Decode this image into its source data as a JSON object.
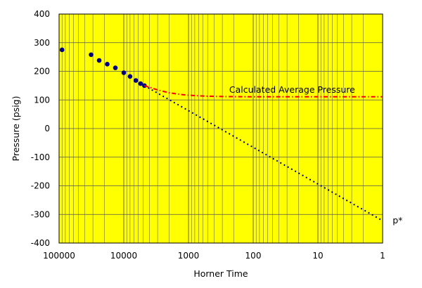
{
  "chart_data": {
    "type": "scatter",
    "title": "",
    "xlabel": "Horner Time",
    "ylabel": "Pressure (psig)",
    "x_scale": "log",
    "x_reversed": true,
    "xlim": [
      100000,
      1
    ],
    "ylim": [
      -400,
      400
    ],
    "x_ticks": [
      100000,
      10000,
      1000,
      100,
      10,
      1
    ],
    "x_tick_labels": [
      "100000",
      "10000",
      "1000",
      "100",
      "10",
      "1"
    ],
    "y_ticks": [
      400,
      300,
      200,
      100,
      0,
      -100,
      -200,
      -300,
      -400
    ],
    "y_tick_labels": [
      "400",
      "300",
      "200",
      "100",
      "0",
      "-100",
      "-200",
      "-300",
      "-400"
    ],
    "grid": true,
    "plot_background": "#ffff00",
    "series": [
      {
        "kind": "points",
        "color": "#000080",
        "x": [
          90000,
          32000,
          24000,
          18000,
          13500,
          10000,
          8000,
          6500,
          5500,
          4800
        ],
        "y": [
          275,
          258,
          238,
          225,
          212,
          195,
          182,
          168,
          157,
          150
        ]
      },
      {
        "kind": "dotted-line",
        "color": "#000080",
        "x": [
          4800,
          1
        ],
        "y": [
          150,
          -322
        ]
      },
      {
        "kind": "dash-dot-line",
        "color": "#ff0000",
        "x": [
          4800,
          3000,
          2000,
          1200,
          800,
          500,
          300,
          100,
          30,
          10,
          1
        ],
        "y": [
          150,
          135,
          125,
          118,
          115,
          113,
          112,
          111,
          111,
          111,
          111
        ]
      }
    ],
    "annotations": [
      {
        "text": "Calculated Average Pressure",
        "x": 25,
        "y": 135
      },
      {
        "text": "p*",
        "x": 0.7,
        "y": -322
      }
    ]
  }
}
